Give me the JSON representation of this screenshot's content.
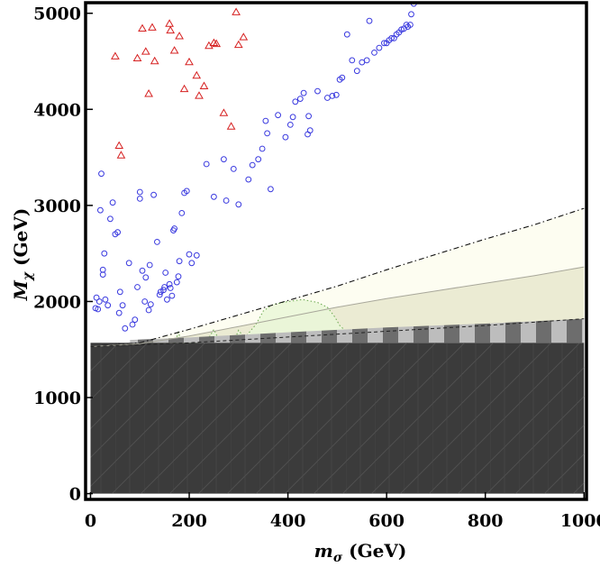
{
  "chart_data": {
    "type": "scatter",
    "title": "",
    "xlabel": {
      "main": "m",
      "sub": "σ",
      "unit": " (GeV)"
    },
    "ylabel": {
      "main": "M",
      "sub": "χ",
      "unit": " (GeV)"
    },
    "xlim": [
      -10,
      1005
    ],
    "ylim": [
      -60,
      5110
    ],
    "x_ticks": [
      0,
      200,
      400,
      600,
      800,
      1000
    ],
    "y_ticks": [
      0,
      1000,
      2000,
      3000,
      4000,
      5000
    ],
    "grid": false,
    "series": [
      {
        "name": "circles",
        "marker": "circle",
        "color": "#3a3adf",
        "points": [
          [
            10,
            1930
          ],
          [
            12,
            2040
          ],
          [
            15,
            1920
          ],
          [
            18,
            2000
          ],
          [
            20,
            2950
          ],
          [
            22,
            3330
          ],
          [
            25,
            2330
          ],
          [
            25,
            2280
          ],
          [
            28,
            2500
          ],
          [
            30,
            2020
          ],
          [
            35,
            1960
          ],
          [
            40,
            2860
          ],
          [
            45,
            3030
          ],
          [
            50,
            2700
          ],
          [
            55,
            2720
          ],
          [
            58,
            1880
          ],
          [
            60,
            2100
          ],
          [
            65,
            1960
          ],
          [
            70,
            1720
          ],
          [
            78,
            2400
          ],
          [
            85,
            1760
          ],
          [
            90,
            1810
          ],
          [
            95,
            2150
          ],
          [
            100,
            3140
          ],
          [
            100,
            3070
          ],
          [
            105,
            2320
          ],
          [
            110,
            2000
          ],
          [
            112,
            2250
          ],
          [
            118,
            1910
          ],
          [
            120,
            2380
          ],
          [
            122,
            1970
          ],
          [
            128,
            3110
          ],
          [
            135,
            2620
          ],
          [
            140,
            2070
          ],
          [
            142,
            2100
          ],
          [
            148,
            2120
          ],
          [
            150,
            2150
          ],
          [
            152,
            2300
          ],
          [
            155,
            2020
          ],
          [
            160,
            2180
          ],
          [
            162,
            2140
          ],
          [
            165,
            2060
          ],
          [
            168,
            2740
          ],
          [
            170,
            2760
          ],
          [
            175,
            2200
          ],
          [
            178,
            2260
          ],
          [
            180,
            2420
          ],
          [
            185,
            2920
          ],
          [
            190,
            3130
          ],
          [
            195,
            3150
          ],
          [
            200,
            2490
          ],
          [
            205,
            2400
          ],
          [
            215,
            2480
          ],
          [
            235,
            3430
          ],
          [
            250,
            3090
          ],
          [
            270,
            3480
          ],
          [
            275,
            3050
          ],
          [
            290,
            3380
          ],
          [
            300,
            3010
          ],
          [
            320,
            3270
          ],
          [
            328,
            3420
          ],
          [
            340,
            3480
          ],
          [
            348,
            3590
          ],
          [
            355,
            3880
          ],
          [
            358,
            3750
          ],
          [
            365,
            3170
          ],
          [
            380,
            3940
          ],
          [
            395,
            3710
          ],
          [
            405,
            3840
          ],
          [
            410,
            3920
          ],
          [
            415,
            4080
          ],
          [
            425,
            4110
          ],
          [
            432,
            4170
          ],
          [
            440,
            3740
          ],
          [
            442,
            3930
          ],
          [
            445,
            3780
          ],
          [
            460,
            4190
          ],
          [
            480,
            4120
          ],
          [
            490,
            4140
          ],
          [
            498,
            4150
          ],
          [
            505,
            4310
          ],
          [
            510,
            4330
          ],
          [
            520,
            4780
          ],
          [
            530,
            4510
          ],
          [
            540,
            4400
          ],
          [
            550,
            4490
          ],
          [
            560,
            4510
          ],
          [
            565,
            4920
          ],
          [
            575,
            4590
          ],
          [
            585,
            4640
          ],
          [
            595,
            4690
          ],
          [
            605,
            4720
          ],
          [
            615,
            4740
          ],
          [
            625,
            4800
          ],
          [
            635,
            4840
          ],
          [
            643,
            4860
          ],
          [
            648,
            4880
          ],
          [
            650,
            4990
          ],
          [
            655,
            5100
          ],
          [
            600,
            4690
          ],
          [
            610,
            4740
          ],
          [
            620,
            4780
          ],
          [
            630,
            4830
          ],
          [
            640,
            4880
          ]
        ]
      },
      {
        "name": "triangles",
        "marker": "triangle",
        "color": "#d62020",
        "points": [
          [
            50,
            4550
          ],
          [
            58,
            3620
          ],
          [
            62,
            3520
          ],
          [
            95,
            4530
          ],
          [
            105,
            4840
          ],
          [
            112,
            4600
          ],
          [
            118,
            4160
          ],
          [
            125,
            4850
          ],
          [
            130,
            4500
          ],
          [
            160,
            4890
          ],
          [
            162,
            4820
          ],
          [
            170,
            4610
          ],
          [
            180,
            4760
          ],
          [
            190,
            4210
          ],
          [
            200,
            4490
          ],
          [
            215,
            4350
          ],
          [
            220,
            4140
          ],
          [
            230,
            4240
          ],
          [
            240,
            4660
          ],
          [
            250,
            4690
          ],
          [
            255,
            4680
          ],
          [
            270,
            3960
          ],
          [
            285,
            3820
          ],
          [
            295,
            5010
          ],
          [
            300,
            4670
          ],
          [
            310,
            4750
          ]
        ]
      }
    ],
    "regions": [
      {
        "name": "outer-band",
        "fill": "#fdfdf1",
        "upper_line": "dash-dot",
        "upper": [
          [
            0,
            1530
          ],
          [
            100,
            1570
          ],
          [
            200,
            1710
          ],
          [
            300,
            1860
          ],
          [
            400,
            2010
          ],
          [
            500,
            2160
          ],
          [
            600,
            2330
          ],
          [
            700,
            2490
          ],
          [
            800,
            2650
          ],
          [
            900,
            2800
          ],
          [
            1000,
            2970
          ]
        ],
        "lower": [
          [
            0,
            1530
          ],
          [
            200,
            1570
          ],
          [
            400,
            1630
          ],
          [
            600,
            1690
          ],
          [
            800,
            1750
          ],
          [
            1000,
            1820
          ]
        ]
      },
      {
        "name": "middle-band",
        "fill": "#e8e7ce",
        "upper": [
          [
            0,
            1530
          ],
          [
            100,
            1560
          ],
          [
            200,
            1640
          ],
          [
            300,
            1740
          ],
          [
            400,
            1840
          ],
          [
            500,
            1940
          ],
          [
            600,
            2030
          ],
          [
            700,
            2110
          ],
          [
            800,
            2190
          ],
          [
            900,
            2270
          ],
          [
            1000,
            2360
          ]
        ],
        "lower": [
          [
            0,
            1530
          ],
          [
            200,
            1570
          ],
          [
            400,
            1630
          ],
          [
            600,
            1690
          ],
          [
            800,
            1750
          ],
          [
            1000,
            1820
          ]
        ]
      },
      {
        "name": "green-dotted-region",
        "fill": "#eaf7d8",
        "boundary": [
          [
            170,
            1560
          ],
          [
            178,
            1680
          ],
          [
            186,
            1560
          ],
          [
            235,
            1580
          ],
          [
            250,
            1710
          ],
          [
            262,
            1580
          ],
          [
            292,
            1600
          ],
          [
            300,
            1700
          ],
          [
            312,
            1620
          ],
          [
            335,
            1760
          ],
          [
            350,
            1900
          ],
          [
            370,
            1970
          ],
          [
            400,
            2000
          ],
          [
            430,
            2020
          ],
          [
            460,
            1990
          ],
          [
            480,
            1940
          ],
          [
            495,
            1840
          ],
          [
            505,
            1750
          ],
          [
            520,
            1680
          ]
        ]
      },
      {
        "name": "striped-band",
        "lower": 1570,
        "upper": [
          [
            80,
            1600
          ],
          [
            200,
            1625
          ],
          [
            400,
            1680
          ],
          [
            600,
            1730
          ],
          [
            800,
            1770
          ],
          [
            1000,
            1820
          ]
        ]
      },
      {
        "name": "dark-excluded-region",
        "fill": "#3b3b3b",
        "x_range": [
          0,
          1000
        ],
        "y_range": [
          0,
          1570
        ]
      }
    ]
  }
}
